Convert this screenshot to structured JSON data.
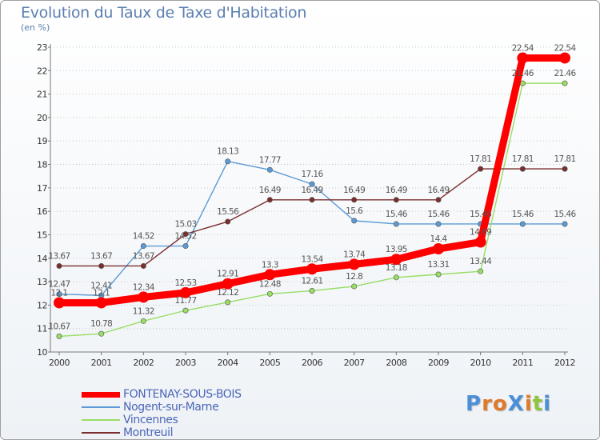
{
  "title": "Evolution du Taux de Taxe d'Habitation",
  "subtitle": "(en %)",
  "logo": "ProXiti",
  "chart_data": {
    "type": "line",
    "title": "Evolution du Taux de Taxe d'Habitation",
    "ylabel": "(en %)",
    "xlabel": "",
    "x": [
      2000,
      2001,
      2002,
      2003,
      2004,
      2005,
      2006,
      2007,
      2008,
      2009,
      2010,
      2011,
      2012
    ],
    "ylim": [
      10,
      23
    ],
    "yticks": [
      10,
      11,
      12,
      13,
      14,
      15,
      16,
      17,
      18,
      19,
      20,
      21,
      22,
      23
    ],
    "grid": "horizontal-dotted",
    "legend_position": "bottom-left",
    "series": [
      {
        "name": "FONTENAY-SOUS-BOIS",
        "color": "#ff0000",
        "values": [
          12.1,
          12.1,
          12.34,
          12.53,
          12.91,
          13.3,
          13.54,
          13.74,
          13.95,
          14.4,
          14.69,
          22.54,
          22.54
        ],
        "labels": [
          "12.1",
          "12.1",
          "12.34",
          "12.53",
          "12.91",
          "13.3",
          "13.54",
          "13.74",
          "13.95",
          "14.4",
          "14.69",
          "22.54",
          "22.54"
        ]
      },
      {
        "name": "Nogent-sur-Marne",
        "color": "#5b9bd5",
        "values": [
          12.47,
          12.41,
          14.52,
          14.52,
          18.13,
          17.77,
          17.16,
          15.6,
          15.46,
          15.46,
          15.46,
          15.46,
          15.46
        ],
        "labels": [
          "12.47",
          "12.41",
          "14.52",
          "14.52",
          "18.13",
          "17.77",
          "17.16",
          "15.6",
          "15.46",
          "15.46",
          "15.46",
          "15.46",
          "15.46"
        ]
      },
      {
        "name": "Vincennes",
        "color": "#99dd66",
        "values": [
          10.67,
          10.78,
          11.32,
          11.77,
          12.12,
          12.48,
          12.61,
          12.8,
          13.18,
          13.31,
          13.44,
          21.46,
          21.46
        ],
        "labels": [
          "10.67",
          "10.78",
          "11.32",
          "11.77",
          "12.12",
          "12.48",
          "12.61",
          "12.8",
          "13.18",
          "13.31",
          "13.44",
          "21.46",
          "21.46"
        ]
      },
      {
        "name": "Montreuil",
        "color": "#7a2e2e",
        "values": [
          13.67,
          13.67,
          13.67,
          15.03,
          15.56,
          16.49,
          16.49,
          16.49,
          16.49,
          16.49,
          17.81,
          17.81,
          17.81
        ],
        "labels": [
          "13.67",
          "13.67",
          "13.67",
          "15.03",
          "15.56",
          "16.49",
          "16.49",
          "16.49",
          "16.49",
          "16.49",
          "17.81",
          "17.81",
          "17.81"
        ]
      }
    ]
  }
}
